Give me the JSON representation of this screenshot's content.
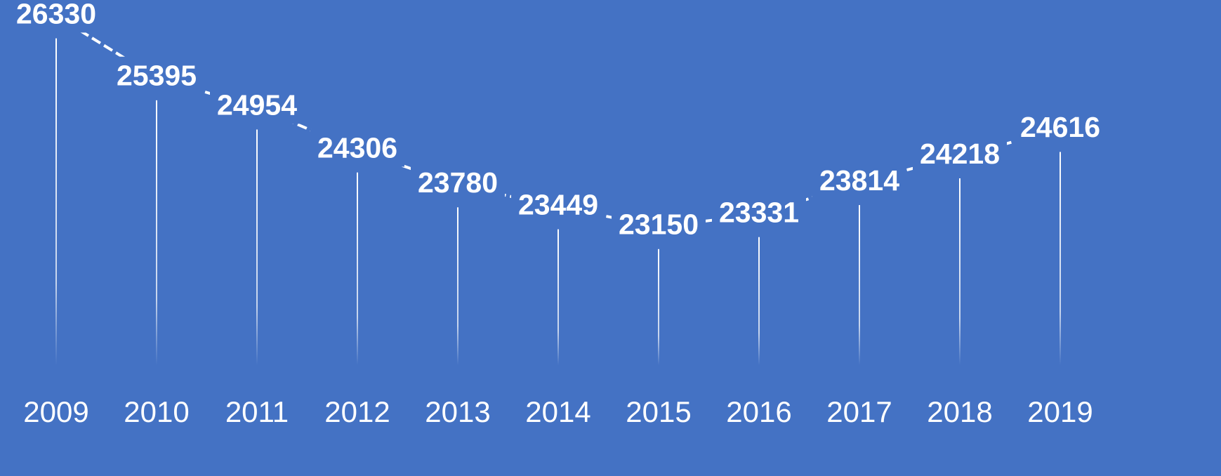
{
  "chart_data": {
    "type": "line",
    "categories": [
      "2009",
      "2010",
      "2011",
      "2012",
      "2013",
      "2014",
      "2015",
      "2016",
      "2017",
      "2018",
      "2019"
    ],
    "values": [
      26330,
      25395,
      24954,
      24306,
      23780,
      23449,
      23150,
      23331,
      23814,
      24218,
      24616
    ],
    "color": "#ffffff",
    "ylim": [
      21400,
      26400
    ]
  }
}
